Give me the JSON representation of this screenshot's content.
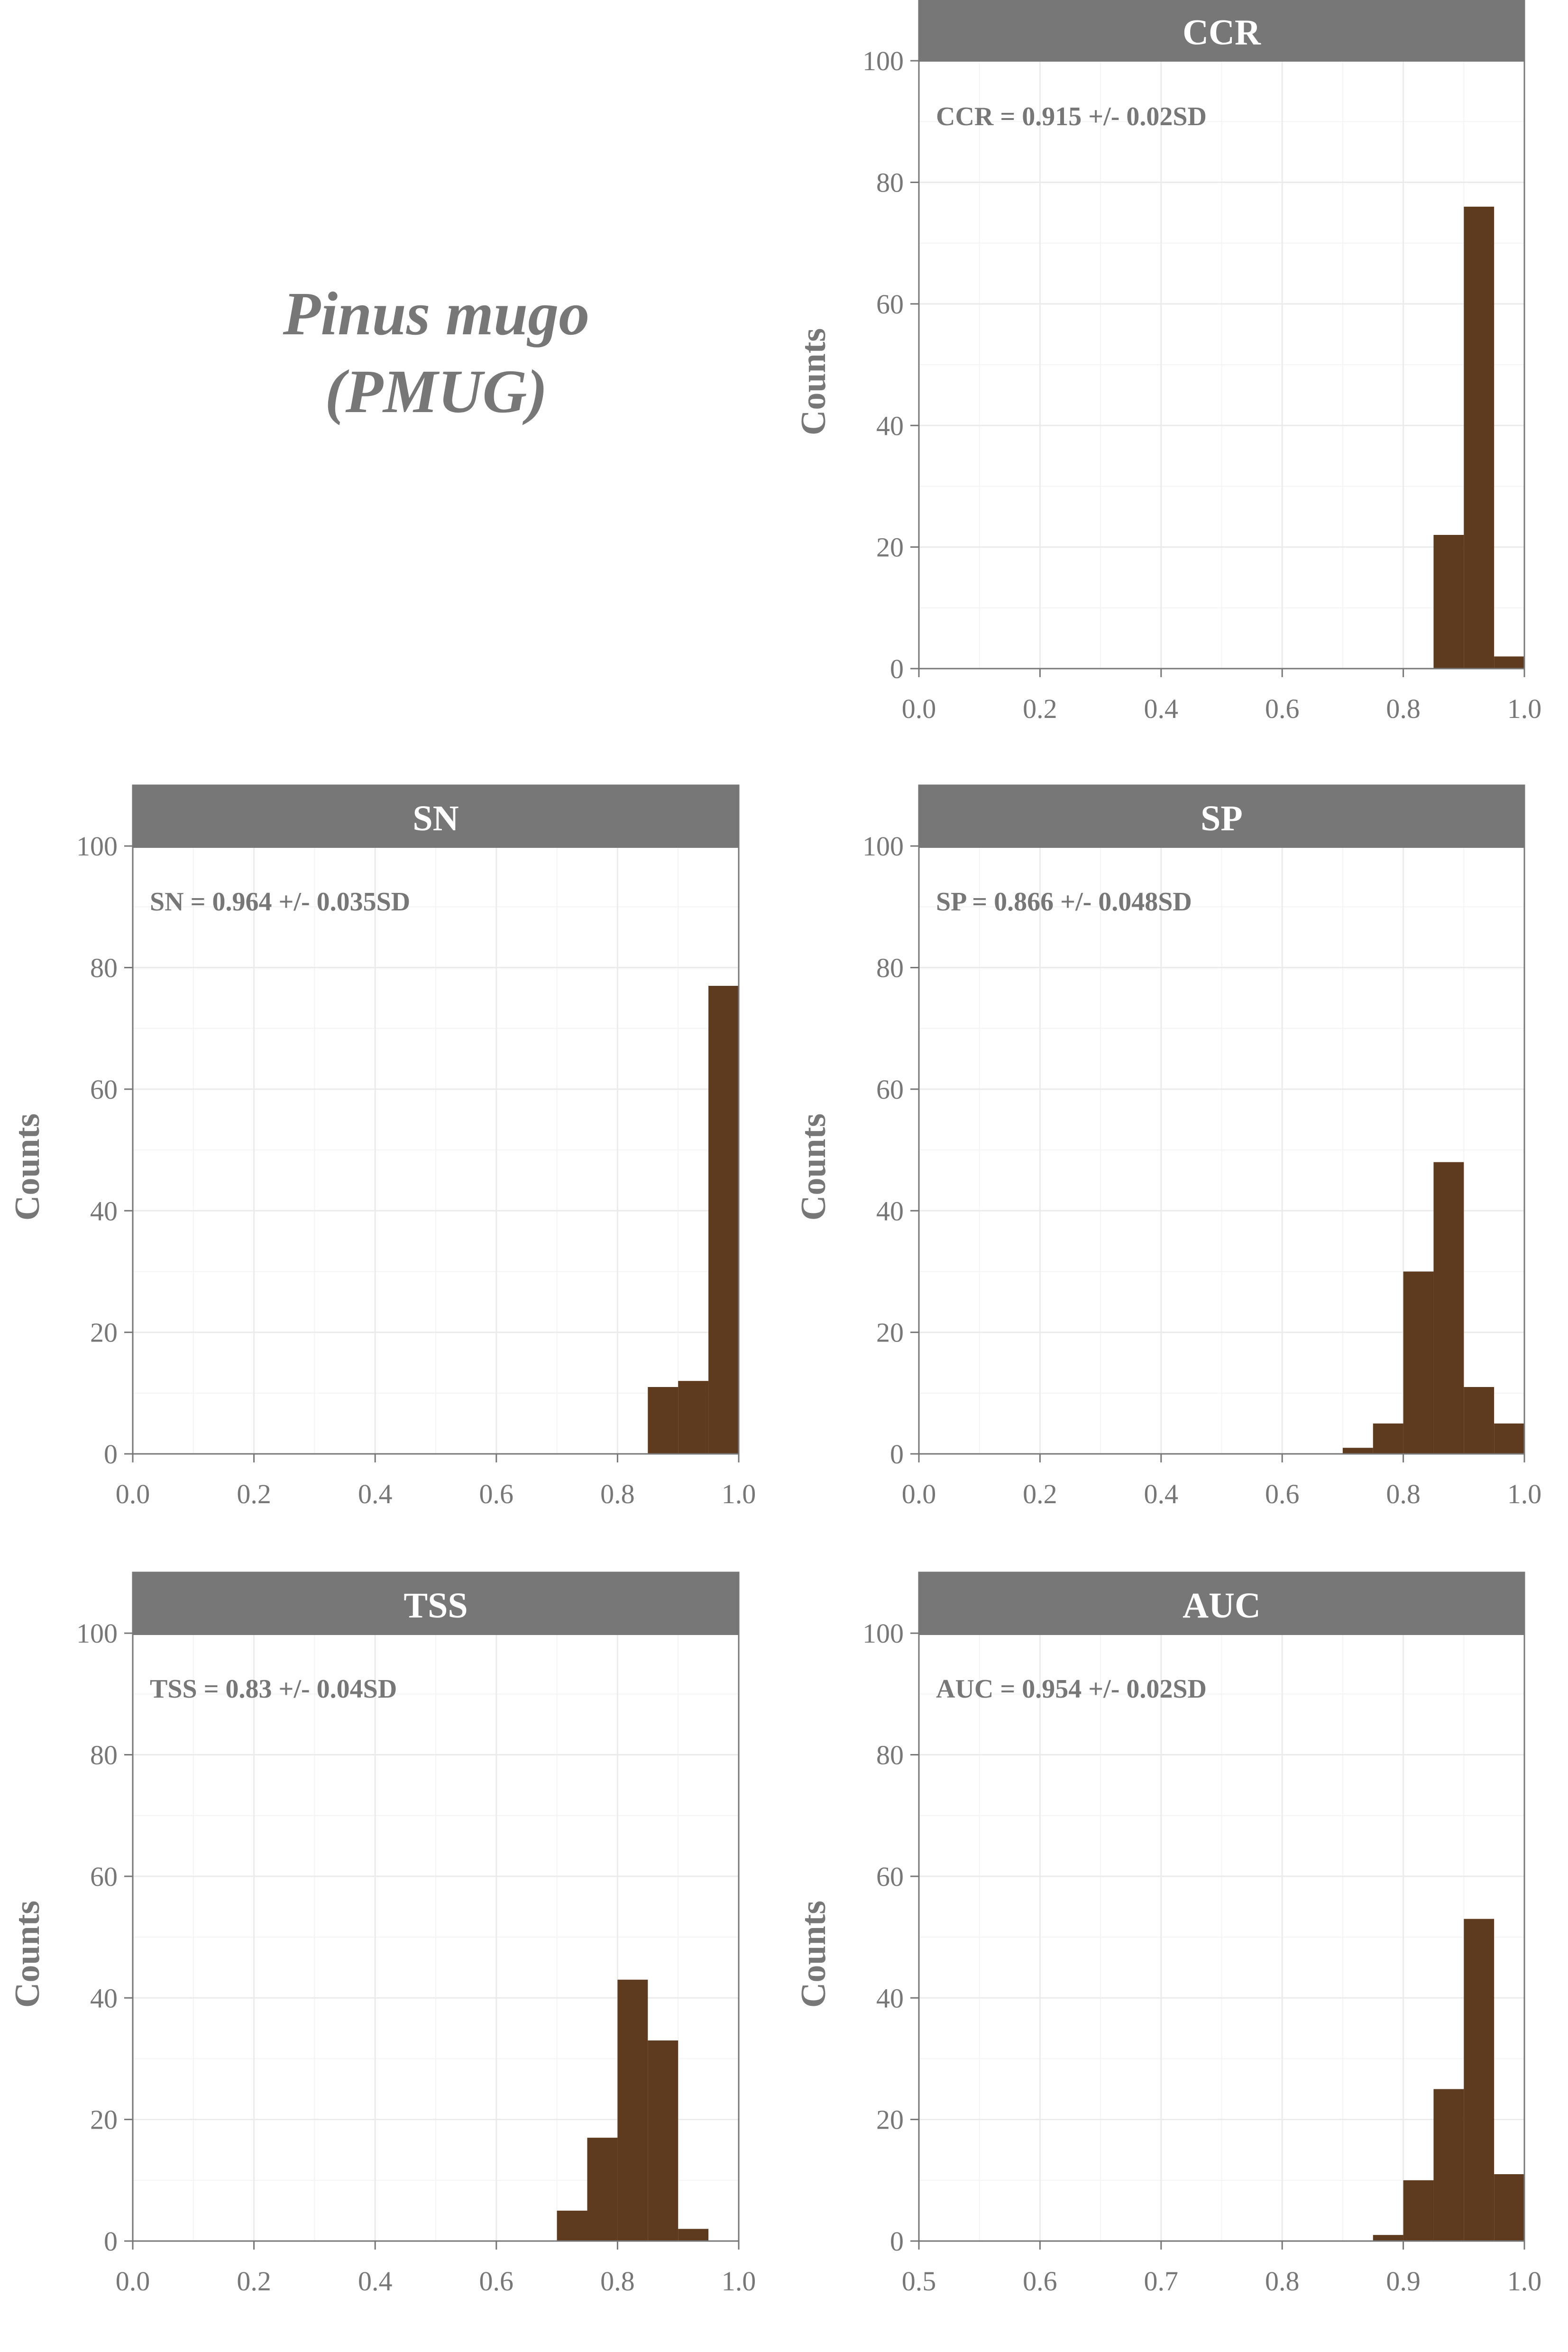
{
  "figure": {
    "title_lines": [
      "Pinus mugo",
      "(PMUG)"
    ],
    "bar_color": "#5e3a1f",
    "strip_color": "#777777",
    "text_color": "#777777"
  },
  "chart_data": [
    {
      "type": "bar",
      "panel": "CCR",
      "annotation": "CCR = 0.915 +/- 0.02SD",
      "xlabel": "",
      "ylabel": "Counts",
      "xlim": [
        0,
        1
      ],
      "ylim": [
        0,
        110
      ],
      "xticks": [
        "0.0",
        "0.2",
        "0.4",
        "0.6",
        "0.8",
        "1.0"
      ],
      "yticks": [
        "0",
        "20",
        "40",
        "60",
        "80",
        "100"
      ],
      "bins": [
        [
          0.85,
          0.9,
          22
        ],
        [
          0.9,
          0.95,
          76
        ],
        [
          0.95,
          1.0,
          2
        ]
      ]
    },
    {
      "type": "bar",
      "panel": "SN",
      "annotation": "SN = 0.964 +/- 0.035SD",
      "xlabel": "",
      "ylabel": "Counts",
      "xlim": [
        0,
        1
      ],
      "ylim": [
        0,
        110
      ],
      "xticks": [
        "0.0",
        "0.2",
        "0.4",
        "0.6",
        "0.8",
        "1.0"
      ],
      "yticks": [
        "0",
        "20",
        "40",
        "60",
        "80",
        "100"
      ],
      "bins": [
        [
          0.85,
          0.9,
          11
        ],
        [
          0.9,
          0.95,
          12
        ],
        [
          0.95,
          1.0,
          77
        ]
      ]
    },
    {
      "type": "bar",
      "panel": "SP",
      "annotation": "SP = 0.866 +/- 0.048SD",
      "xlabel": "",
      "ylabel": "Counts",
      "xlim": [
        0,
        1
      ],
      "ylim": [
        0,
        110
      ],
      "xticks": [
        "0.0",
        "0.2",
        "0.4",
        "0.6",
        "0.8",
        "1.0"
      ],
      "yticks": [
        "0",
        "20",
        "40",
        "60",
        "80",
        "100"
      ],
      "bins": [
        [
          0.7,
          0.75,
          1
        ],
        [
          0.75,
          0.8,
          5
        ],
        [
          0.8,
          0.85,
          30
        ],
        [
          0.85,
          0.9,
          48
        ],
        [
          0.9,
          0.95,
          11
        ],
        [
          0.95,
          1.0,
          5
        ]
      ]
    },
    {
      "type": "bar",
      "panel": "TSS",
      "annotation": "TSS = 0.83 +/- 0.04SD",
      "xlabel": "",
      "ylabel": "Counts",
      "xlim": [
        0,
        1
      ],
      "ylim": [
        0,
        110
      ],
      "xticks": [
        "0.0",
        "0.2",
        "0.4",
        "0.6",
        "0.8",
        "1.0"
      ],
      "yticks": [
        "0",
        "20",
        "40",
        "60",
        "80",
        "100"
      ],
      "bins": [
        [
          0.7,
          0.75,
          5
        ],
        [
          0.75,
          0.8,
          17
        ],
        [
          0.8,
          0.85,
          43
        ],
        [
          0.85,
          0.9,
          33
        ],
        [
          0.9,
          0.95,
          2
        ]
      ]
    },
    {
      "type": "bar",
      "panel": "AUC",
      "annotation": "AUC = 0.954 +/- 0.02SD",
      "xlabel": "",
      "ylabel": "Counts",
      "xlim": [
        0.5,
        1
      ],
      "ylim": [
        0,
        110
      ],
      "xticks": [
        "0.5",
        "0.6",
        "0.7",
        "0.8",
        "0.9",
        "1.0"
      ],
      "yticks": [
        "0",
        "20",
        "40",
        "60",
        "80",
        "100"
      ],
      "bins": [
        [
          0.875,
          0.9,
          1
        ],
        [
          0.9,
          0.925,
          10
        ],
        [
          0.925,
          0.95,
          25
        ],
        [
          0.95,
          0.975,
          53
        ],
        [
          0.975,
          1.0,
          11
        ]
      ]
    }
  ]
}
